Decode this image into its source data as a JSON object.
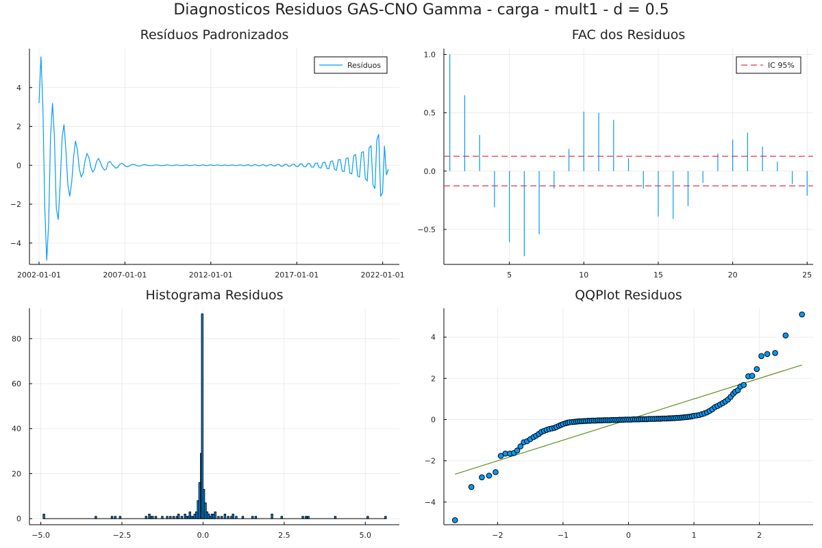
{
  "figure": {
    "title": "Diagnosticos Residuos  GAS-CNO Gamma - carga - mult1 - d = 0.5"
  },
  "colors": {
    "series": "#009AFA",
    "ci": "#E5323F",
    "line": "#5E8F1C",
    "grid": "#EBEBEB",
    "axis": "#000000"
  },
  "chart_data": [
    {
      "id": "residuals",
      "type": "line",
      "title": "Resíduos Padronizados",
      "legend": {
        "entries": [
          "Resíduos"
        ],
        "position": "top-right"
      },
      "x_ticks": [
        "2002-01-01",
        "2007-01-01",
        "2012-01-01",
        "2017-01-01",
        "2022-01-01"
      ],
      "xlim": [
        "2002-01-01",
        "2022-06-01"
      ],
      "y_ticks": [
        -4,
        -2,
        0,
        2,
        4
      ],
      "ylim": [
        -5.1,
        6.0
      ],
      "grid": true,
      "series": [
        {
          "values": [
            3.2,
            5.6,
            3.0,
            -2.2,
            -4.9,
            -3.0,
            1.5,
            3.2,
            1.5,
            -2.2,
            -2.8,
            -1.0,
            1.4,
            2.1,
            0.8,
            -1.0,
            -1.6,
            -0.9,
            0.4,
            1.25,
            0.8,
            -0.2,
            -0.6,
            -0.4,
            0.25,
            0.6,
            0.4,
            -0.1,
            -0.35,
            -0.2,
            0.2,
            0.35,
            0.15,
            -0.1,
            -0.25,
            -0.2,
            0.15,
            0.2,
            0.05,
            -0.05,
            -0.15,
            -0.1,
            0.05,
            0.1,
            0.05,
            -0.05,
            -0.08,
            -0.05,
            0.03,
            0.05,
            0.02,
            -0.02,
            -0.04,
            -0.03,
            0.02,
            0.03,
            0.01,
            -0.01,
            -0.02,
            -0.02,
            0.01,
            0.02,
            0.01,
            -0.01,
            -0.02,
            -0.01,
            0.01,
            0.02,
            0.0,
            -0.02,
            -0.01,
            0.01,
            0.02,
            0.0,
            -0.02,
            -0.01,
            0.01,
            0.02,
            -0.01,
            -0.02,
            0.0,
            0.02,
            0.01,
            -0.02,
            -0.01,
            0.02,
            0.01,
            -0.02,
            -0.01,
            0.02,
            0.01,
            -0.02,
            0.0,
            0.02,
            0.0,
            -0.02,
            0.0,
            0.02,
            -0.01,
            -0.02,
            0.01,
            0.02,
            -0.01,
            -0.02,
            0.01,
            0.02,
            -0.01,
            -0.02,
            0.01,
            0.03,
            -0.02,
            -0.03,
            0.02,
            0.03,
            -0.02,
            -0.03,
            0.02,
            0.03,
            -0.03,
            -0.03,
            0.03,
            0.04,
            -0.03,
            -0.04,
            0.04,
            0.04,
            -0.04,
            -0.05,
            0.05,
            0.05,
            -0.05,
            -0.05,
            0.05,
            0.06,
            -0.06,
            -0.06,
            0.06,
            0.07,
            -0.07,
            -0.08,
            0.08,
            0.09,
            -0.09,
            -0.1,
            0.1,
            0.12,
            -0.12,
            -0.14,
            0.14,
            0.16,
            -0.16,
            -0.18,
            0.2,
            0.22,
            -0.22,
            -0.25,
            0.28,
            0.3,
            -0.3,
            -0.32,
            0.35,
            0.38,
            -0.4,
            -0.45,
            0.5,
            0.55,
            -0.55,
            -0.6,
            0.65,
            0.7,
            -0.7,
            -0.8,
            0.9,
            1.0,
            -1.0,
            -1.2,
            1.3,
            1.6,
            -1.6,
            -1.4,
            1.0,
            -0.5,
            -0.2
          ]
        }
      ]
    },
    {
      "id": "acf",
      "type": "bar",
      "title": "FAC dos Residuos",
      "legend": {
        "entries": [
          "IC 95%"
        ],
        "position": "top-right"
      },
      "x_ticks": [
        5,
        10,
        15,
        20,
        25
      ],
      "xlim": [
        0.6,
        25.4
      ],
      "y_ticks": [
        "-0.5",
        "0.0",
        "0.5",
        "1.0"
      ],
      "ylim": [
        -0.8,
        1.05
      ],
      "grid": true,
      "lags": [
        1,
        2,
        3,
        4,
        5,
        6,
        7,
        8,
        9,
        10,
        11,
        12,
        13,
        14,
        15,
        16,
        17,
        18,
        19,
        20,
        21,
        22,
        23,
        24,
        25
      ],
      "values": [
        1.0,
        0.65,
        0.31,
        -0.31,
        -0.61,
        -0.73,
        -0.54,
        -0.15,
        0.19,
        0.51,
        0.5,
        0.44,
        0.11,
        -0.15,
        -0.39,
        -0.41,
        -0.3,
        -0.1,
        0.15,
        0.27,
        0.33,
        0.21,
        0.08,
        -0.11,
        -0.21
      ],
      "ci": [
        0.127,
        -0.127
      ]
    },
    {
      "id": "histogram",
      "type": "bar",
      "title": "Histograma Residuos",
      "x_ticks": [
        "-5.0",
        "-2.5",
        "0.0",
        "2.5",
        "5.0"
      ],
      "xlim": [
        -5.35,
        6.05
      ],
      "y_ticks": [
        0,
        20,
        40,
        60,
        80
      ],
      "ylim": [
        -2.7,
        93.5
      ],
      "grid": true,
      "bins": [
        [
          -4.93,
          -4.88,
          2
        ],
        [
          -3.33,
          -3.28,
          1
        ],
        [
          -2.83,
          -2.78,
          1
        ],
        [
          -2.73,
          -2.68,
          1
        ],
        [
          -2.58,
          -2.53,
          1
        ],
        [
          -1.78,
          -1.73,
          1
        ],
        [
          -1.68,
          -1.63,
          2
        ],
        [
          -1.63,
          -1.58,
          1
        ],
        [
          -1.58,
          -1.53,
          1
        ],
        [
          -1.48,
          -1.43,
          1
        ],
        [
          -1.28,
          -1.23,
          1
        ],
        [
          -1.13,
          -1.08,
          1
        ],
        [
          -1.03,
          -0.98,
          1
        ],
        [
          -0.93,
          -0.88,
          1
        ],
        [
          -0.83,
          -0.78,
          1
        ],
        [
          -0.78,
          -0.73,
          2
        ],
        [
          -0.68,
          -0.63,
          1
        ],
        [
          -0.58,
          -0.53,
          2
        ],
        [
          -0.53,
          -0.48,
          1
        ],
        [
          -0.48,
          -0.43,
          1
        ],
        [
          -0.43,
          -0.38,
          3
        ],
        [
          -0.38,
          -0.33,
          1
        ],
        [
          -0.33,
          -0.28,
          1
        ],
        [
          -0.28,
          -0.23,
          2
        ],
        [
          -0.23,
          -0.18,
          3
        ],
        [
          -0.18,
          -0.13,
          8
        ],
        [
          -0.13,
          -0.08,
          16
        ],
        [
          -0.08,
          -0.05,
          29
        ],
        [
          -0.05,
          0.0,
          91
        ],
        [
          0.0,
          0.05,
          13
        ],
        [
          0.05,
          0.1,
          7
        ],
        [
          0.1,
          0.15,
          3
        ],
        [
          0.15,
          0.2,
          2
        ],
        [
          0.2,
          0.25,
          1
        ],
        [
          0.25,
          0.3,
          2
        ],
        [
          0.3,
          0.35,
          2
        ],
        [
          0.35,
          0.4,
          3
        ],
        [
          0.45,
          0.5,
          1
        ],
        [
          0.55,
          0.6,
          1
        ],
        [
          0.65,
          0.7,
          2
        ],
        [
          0.75,
          0.8,
          1
        ],
        [
          0.85,
          0.9,
          1
        ],
        [
          0.9,
          0.95,
          2
        ],
        [
          1.0,
          1.05,
          1
        ],
        [
          1.2,
          1.25,
          1
        ],
        [
          1.5,
          1.55,
          1
        ],
        [
          1.6,
          1.65,
          1
        ],
        [
          2.1,
          2.15,
          2
        ],
        [
          2.4,
          2.45,
          1
        ],
        [
          3.05,
          3.1,
          1
        ],
        [
          3.15,
          3.2,
          1
        ],
        [
          3.22,
          3.27,
          1
        ],
        [
          4.05,
          4.1,
          1
        ],
        [
          5.05,
          5.1,
          1
        ],
        [
          5.6,
          5.65,
          1
        ]
      ]
    },
    {
      "id": "qqplot",
      "type": "scatter",
      "title": "QQPlot Residuos",
      "x_ticks": [
        "-2",
        "-1",
        "0",
        "1",
        "2"
      ],
      "xlim": [
        -2.82,
        2.82
      ],
      "y_ticks": [
        "-4",
        "-2",
        "0",
        "2",
        "4"
      ],
      "ylim": [
        -5.1,
        5.4
      ],
      "grid": true,
      "reference_line": {
        "x": [
          -2.65,
          2.65
        ],
        "y": [
          -2.65,
          2.65
        ]
      },
      "points": [
        [
          -2.65,
          -4.88
        ],
        [
          -2.4,
          -3.27
        ],
        [
          -2.24,
          -2.8
        ],
        [
          -2.13,
          -2.72
        ],
        [
          -2.03,
          -2.55
        ],
        [
          -1.95,
          -1.76
        ],
        [
          -1.88,
          -1.65
        ],
        [
          -1.81,
          -1.65
        ],
        [
          -1.75,
          -1.62
        ],
        [
          -1.7,
          -1.5
        ],
        [
          -1.65,
          -1.3
        ],
        [
          -1.6,
          -1.1
        ],
        [
          -1.55,
          -1.05
        ],
        [
          -1.5,
          -0.95
        ],
        [
          -1.45,
          -0.85
        ],
        [
          -1.41,
          -0.78
        ],
        [
          -1.37,
          -0.7
        ],
        [
          -1.33,
          -0.6
        ],
        [
          -1.29,
          -0.55
        ],
        [
          -1.25,
          -0.5
        ],
        [
          -1.21,
          -0.46
        ],
        [
          -1.17,
          -0.43
        ],
        [
          -1.13,
          -0.4
        ],
        [
          -1.1,
          -0.36
        ],
        [
          -1.06,
          -0.3
        ],
        [
          -1.03,
          -0.26
        ],
        [
          -1.0,
          -0.22
        ],
        [
          -0.96,
          -0.18
        ],
        [
          -0.93,
          -0.15
        ],
        [
          -0.9,
          -0.13
        ],
        [
          -0.86,
          -0.12
        ],
        [
          -0.83,
          -0.11
        ],
        [
          -0.8,
          -0.1
        ],
        [
          -0.77,
          -0.09
        ],
        [
          -0.74,
          -0.08
        ],
        [
          -0.71,
          -0.08
        ],
        [
          -0.68,
          -0.07
        ],
        [
          -0.65,
          -0.07
        ],
        [
          -0.62,
          -0.06
        ],
        [
          -0.59,
          -0.06
        ],
        [
          -0.56,
          -0.05
        ],
        [
          -0.53,
          -0.05
        ],
        [
          -0.5,
          -0.05
        ],
        [
          -0.47,
          -0.04
        ],
        [
          -0.44,
          -0.04
        ],
        [
          -0.41,
          -0.04
        ],
        [
          -0.38,
          -0.03
        ],
        [
          -0.35,
          -0.03
        ],
        [
          -0.32,
          -0.03
        ],
        [
          -0.29,
          -0.03
        ],
        [
          -0.26,
          -0.02
        ],
        [
          -0.23,
          -0.02
        ],
        [
          -0.2,
          -0.02
        ],
        [
          -0.17,
          -0.02
        ],
        [
          -0.14,
          -0.01
        ],
        [
          -0.11,
          -0.01
        ],
        [
          -0.08,
          -0.01
        ],
        [
          -0.05,
          0.0
        ],
        [
          -0.02,
          0.0
        ],
        [
          0.01,
          0.0
        ],
        [
          0.04,
          0.0
        ],
        [
          0.07,
          0.01
        ],
        [
          0.1,
          0.01
        ],
        [
          0.13,
          0.01
        ],
        [
          0.16,
          0.01
        ],
        [
          0.19,
          0.02
        ],
        [
          0.22,
          0.02
        ],
        [
          0.25,
          0.02
        ],
        [
          0.28,
          0.02
        ],
        [
          0.31,
          0.03
        ],
        [
          0.34,
          0.03
        ],
        [
          0.37,
          0.03
        ],
        [
          0.4,
          0.03
        ],
        [
          0.43,
          0.04
        ],
        [
          0.46,
          0.04
        ],
        [
          0.49,
          0.04
        ],
        [
          0.52,
          0.05
        ],
        [
          0.55,
          0.05
        ],
        [
          0.58,
          0.05
        ],
        [
          0.61,
          0.06
        ],
        [
          0.64,
          0.06
        ],
        [
          0.67,
          0.07
        ],
        [
          0.7,
          0.07
        ],
        [
          0.73,
          0.08
        ],
        [
          0.76,
          0.08
        ],
        [
          0.79,
          0.09
        ],
        [
          0.82,
          0.1
        ],
        [
          0.85,
          0.11
        ],
        [
          0.88,
          0.12
        ],
        [
          0.91,
          0.13
        ],
        [
          0.94,
          0.14
        ],
        [
          0.97,
          0.16
        ],
        [
          1.0,
          0.18
        ],
        [
          1.04,
          0.2
        ],
        [
          1.08,
          0.22
        ],
        [
          1.12,
          0.26
        ],
        [
          1.16,
          0.3
        ],
        [
          1.2,
          0.35
        ],
        [
          1.24,
          0.42
        ],
        [
          1.28,
          0.5
        ],
        [
          1.32,
          0.6
        ],
        [
          1.36,
          0.66
        ],
        [
          1.4,
          0.73
        ],
        [
          1.44,
          0.8
        ],
        [
          1.48,
          0.88
        ],
        [
          1.52,
          0.97
        ],
        [
          1.56,
          1.1
        ],
        [
          1.6,
          1.25
        ],
        [
          1.63,
          1.35
        ],
        [
          1.67,
          1.42
        ],
        [
          1.71,
          1.6
        ],
        [
          1.76,
          1.68
        ],
        [
          1.83,
          2.1
        ],
        [
          1.89,
          2.12
        ],
        [
          1.96,
          2.45
        ],
        [
          2.03,
          3.08
        ],
        [
          2.12,
          3.18
        ],
        [
          2.24,
          3.23
        ],
        [
          2.4,
          4.08
        ],
        [
          2.65,
          5.1
        ]
      ]
    }
  ]
}
